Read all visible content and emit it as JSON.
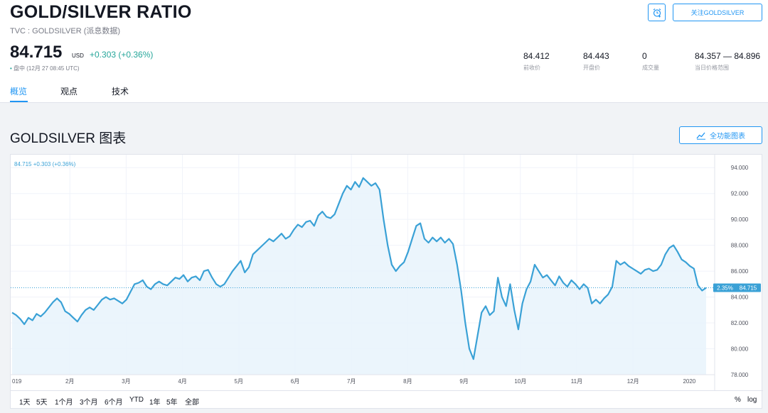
{
  "header": {
    "title": "GOLD/SILVER RATIO",
    "subtitle": "TVC : GOLDSILVER (派息数据)",
    "price": "84.715",
    "currency": "USD",
    "change": "+0.303 (+0.36%)",
    "market_status": "盘中 (12月 27 08:45 UTC)",
    "follow_label": "关注GOLDSILVER",
    "stats": [
      {
        "value": "84.412",
        "label": "前收价"
      },
      {
        "value": "84.443",
        "label": "开盘价"
      },
      {
        "value": "0",
        "label": "成交量"
      },
      {
        "value": "84.357 — 84.896",
        "label": "当日价格范围"
      }
    ]
  },
  "tabs": [
    {
      "label": "概览",
      "active": true
    },
    {
      "label": "观点",
      "active": false
    },
    {
      "label": "技术",
      "active": false
    }
  ],
  "chart_section": {
    "title": "GOLDSILVER 图表",
    "full_chart_label": "全功能图表",
    "legend_text": "84.715 +0.303 (+0.36%)",
    "last_price_label": "84.715",
    "pct_label": "2.35%",
    "ranges": [
      "1天",
      "5天",
      "1个月",
      "3个月",
      "6个月",
      "YTD",
      "1年",
      "5年",
      "全部"
    ],
    "scale_pct": "%",
    "scale_log": "log"
  },
  "colors": {
    "accent": "#2196f3",
    "line": "#3aa1d6",
    "positive": "#26a69a",
    "area_fill": "#e8f3fc"
  },
  "chart_data": {
    "type": "area",
    "title": "GOLDSILVER 图表",
    "ylim": [
      78,
      95
    ],
    "yticks": [
      78,
      80,
      82,
      84,
      86,
      88,
      90,
      92,
      94
    ],
    "ytick_labels": [
      "78.000",
      "80.000",
      "82.000",
      "84.000",
      "86.000",
      "88.000",
      "90.000",
      "92.000",
      "94.000"
    ],
    "x_labels": [
      "019",
      "2月",
      "3月",
      "4月",
      "5月",
      "6月",
      "7月",
      "8月",
      "9月",
      "10月",
      "11月",
      "12月",
      "2020"
    ],
    "last_value": 84.715,
    "series": [
      {
        "values": [
          82.8,
          82.6,
          82.3,
          81.9,
          82.4,
          82.2,
          82.7,
          82.5,
          82.8,
          83.2,
          83.6,
          83.9,
          83.6,
          82.9,
          82.7,
          82.4,
          82.1,
          82.6,
          83.0,
          83.2,
          83.0,
          83.4,
          83.8,
          84.0,
          83.8,
          83.9,
          83.7,
          83.5,
          83.8,
          84.4,
          85.0,
          85.1,
          85.3,
          84.8,
          84.6,
          85.0,
          85.2,
          85.0,
          84.9,
          85.2,
          85.5,
          85.4,
          85.7,
          85.2,
          85.5,
          85.6,
          85.3,
          86.0,
          86.1,
          85.5,
          85.0,
          84.8,
          85.0,
          85.5,
          86.0,
          86.4,
          86.8,
          85.9,
          86.3,
          87.3,
          87.6,
          87.9,
          88.2,
          88.5,
          88.3,
          88.6,
          88.9,
          88.5,
          88.7,
          89.2,
          89.6,
          89.4,
          89.8,
          89.9,
          89.5,
          90.3,
          90.6,
          90.2,
          90.1,
          90.4,
          91.2,
          92.0,
          92.6,
          92.3,
          92.9,
          92.5,
          93.2,
          92.9,
          92.6,
          92.8,
          92.3,
          90.0,
          88.0,
          86.5,
          86.0,
          86.4,
          86.7,
          87.5,
          88.5,
          89.5,
          89.7,
          88.5,
          88.2,
          88.6,
          88.3,
          88.6,
          88.2,
          88.5,
          88.1,
          86.5,
          84.5,
          82.0,
          80.0,
          79.2,
          81.0,
          82.8,
          83.3,
          82.6,
          82.9,
          85.5,
          84.0,
          83.3,
          85.0,
          83.0,
          81.5,
          83.5,
          84.6,
          85.2,
          86.5,
          86.0,
          85.5,
          85.7,
          85.3,
          84.9,
          85.6,
          85.1,
          84.8,
          85.3,
          85.0,
          84.6,
          85.0,
          84.7,
          83.5,
          83.8,
          83.5,
          83.9,
          84.2,
          84.8,
          86.8,
          86.5,
          86.7,
          86.4,
          86.2,
          86.0,
          85.8,
          86.1,
          86.2,
          86.0,
          86.1,
          86.5,
          87.3,
          87.8,
          88.0,
          87.5,
          86.9,
          86.7,
          86.4,
          86.2,
          84.9,
          84.5,
          84.715
        ]
      }
    ]
  }
}
